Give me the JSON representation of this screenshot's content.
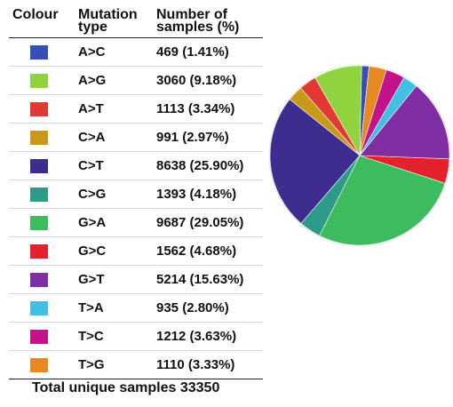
{
  "table": {
    "header": {
      "colour": "Colour",
      "mutation_type": "Mutation type",
      "samples": "Number of samples (%)"
    },
    "rows": [
      {
        "type": "A>C",
        "samples": "469 (1.41%)",
        "color": "#3550b4"
      },
      {
        "type": "A>G",
        "samples": "3060 (9.18%)",
        "color": "#8fd33e"
      },
      {
        "type": "A>T",
        "samples": "1113 (3.34%)",
        "color": "#e23a32"
      },
      {
        "type": "C>A",
        "samples": "991 (2.97%)",
        "color": "#c99a1a"
      },
      {
        "type": "C>T",
        "samples": "8638 (25.90%)",
        "color": "#3e2d8f"
      },
      {
        "type": "C>G",
        "samples": "1393 (4.18%)",
        "color": "#2e9a88"
      },
      {
        "type": "G>A",
        "samples": "9687 (29.05%)",
        "color": "#3cbc5e"
      },
      {
        "type": "G>C",
        "samples": "1562 (4.68%)",
        "color": "#e3222e"
      },
      {
        "type": "G>T",
        "samples": "5214 (15.63%)",
        "color": "#7f2ea3"
      },
      {
        "type": "T>A",
        "samples": "935 (2.80%)",
        "color": "#41c0e4"
      },
      {
        "type": "T>C",
        "samples": "1212 (3.63%)",
        "color": "#c4128a"
      },
      {
        "type": "T>G",
        "samples": "1110 (3.33%)",
        "color": "#e58920"
      }
    ]
  },
  "total": "Total unique samples 33350",
  "chart_data": {
    "type": "pie",
    "categories": [
      "A>C",
      "A>G",
      "A>T",
      "C>A",
      "C>T",
      "C>G",
      "G>A",
      "G>C",
      "G>T",
      "T>A",
      "T>C",
      "T>G"
    ],
    "values": [
      469,
      3060,
      1113,
      991,
      8638,
      1393,
      9687,
      1562,
      5214,
      935,
      1212,
      1110
    ],
    "percentages": [
      1.41,
      9.18,
      3.34,
      2.97,
      25.9,
      4.18,
      29.05,
      4.68,
      15.63,
      2.8,
      3.63,
      3.33
    ],
    "colors": [
      "#3550b4",
      "#8fd33e",
      "#e23a32",
      "#c99a1a",
      "#3e2d8f",
      "#2e9a88",
      "#3cbc5e",
      "#e3222e",
      "#7f2ea3",
      "#41c0e4",
      "#c4128a",
      "#e58920"
    ],
    "start_angle_deg": 84,
    "direction": "counterclockwise"
  }
}
